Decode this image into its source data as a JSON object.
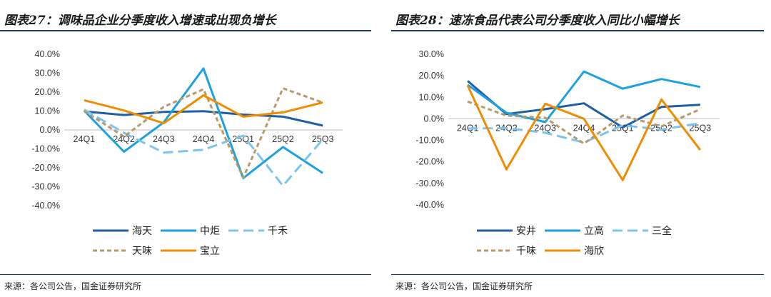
{
  "left": {
    "title": "图表27：调味品企业分季度收入增速或出现负增长",
    "source": "来源：各公司公告，国金证券研究所"
  },
  "right": {
    "title": "图表28：速冻食品代表公司分季度收入同比小幅增长",
    "source": "来源：各公司公告，国金证券研究所"
  },
  "chart_data": [
    {
      "type": "line",
      "title": "调味品企业分季度收入增速或出现负增长",
      "categories": [
        "24Q1",
        "24Q2",
        "24Q3",
        "24Q4",
        "25Q1",
        "25Q2",
        "25Q3"
      ],
      "ylim": [
        -40,
        40
      ],
      "yticks": [
        "40.0%",
        "30.0%",
        "20.0%",
        "10.0%",
        "0.0%",
        "-10.0%",
        "-20.0%",
        "-30.0%",
        "-40.0%"
      ],
      "ytick_values": [
        40,
        30,
        20,
        10,
        0,
        -10,
        -20,
        -30,
        -40
      ],
      "legend_position": "bottom",
      "series": [
        {
          "name": "海天",
          "values": [
            9.8,
            7.9,
            9.5,
            9.9,
            8.1,
            7.0,
            2.3
          ],
          "color": "#1f5fa3",
          "dash": "solid"
        },
        {
          "name": "中炬",
          "values": [
            10.2,
            -11.5,
            4.0,
            32.5,
            -25.5,
            -9.0,
            -22.8
          ],
          "color": "#1ba1e2",
          "dash": "solid"
        },
        {
          "name": "千禾",
          "values": [
            10.8,
            -1.5,
            -12.0,
            -10.5,
            -3.0,
            -29.5,
            -5.0
          ],
          "color": "#7cc4ec",
          "dash": "long"
        },
        {
          "name": "天味",
          "values": [
            10.0,
            -3.5,
            12.2,
            21.5,
            -25.3,
            22.0,
            14.5
          ],
          "color": "#b89a6a",
          "dash": "dash"
        },
        {
          "name": "宝立",
          "values": [
            15.7,
            10.3,
            3.5,
            18.3,
            7.0,
            9.3,
            14.5
          ],
          "color": "#f08c00",
          "dash": "solid"
        }
      ]
    },
    {
      "type": "line",
      "title": "速冻食品代表公司分季度收入同比小幅增长",
      "categories": [
        "24Q1",
        "24Q2",
        "24Q3",
        "24Q4",
        "25Q1",
        "25Q2",
        "25Q3"
      ],
      "ylim": [
        -40,
        30
      ],
      "yticks": [
        "30.0%",
        "20.0%",
        "10.0%",
        "0.0%",
        "-10.0%",
        "-20.0%",
        "-30.0%",
        "-40.0%"
      ],
      "ytick_values": [
        30,
        20,
        10,
        0,
        -10,
        -20,
        -30,
        -40
      ],
      "legend_position": "bottom",
      "series": [
        {
          "name": "安井",
          "values": [
            17.6,
            2.2,
            4.5,
            7.2,
            -4.0,
            5.5,
            6.5
          ],
          "color": "#1f5fa3",
          "dash": "solid"
        },
        {
          "name": "立高",
          "values": [
            15.8,
            2.8,
            -1.5,
            22.0,
            14.0,
            18.5,
            14.8
          ],
          "color": "#1ba1e2",
          "dash": "solid"
        },
        {
          "name": "三全",
          "values": [
            -4.5,
            -4.3,
            -6.5,
            -11.0,
            -3.0,
            -5.0,
            -2.0
          ],
          "color": "#7cc4ec",
          "dash": "long"
        },
        {
          "name": "千味",
          "values": [
            8.0,
            1.5,
            0.5,
            -11.5,
            1.5,
            -3.5,
            4.5
          ],
          "color": "#b89a6a",
          "dash": "dash"
        },
        {
          "name": "海欣",
          "values": [
            15.5,
            -23.5,
            7.0,
            0.0,
            -28.5,
            9.0,
            -14.5
          ],
          "color": "#f08c00",
          "dash": "solid"
        }
      ]
    }
  ]
}
